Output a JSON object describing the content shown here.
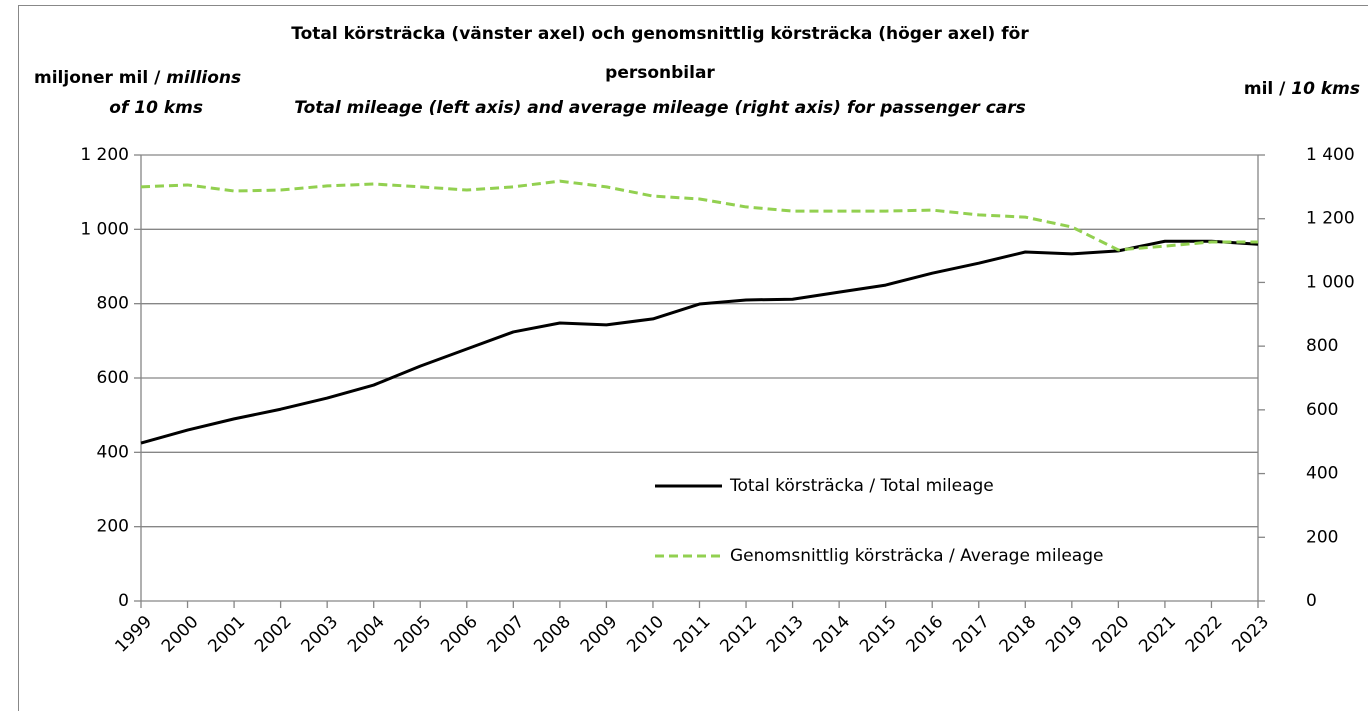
{
  "chart_data": {
    "type": "line",
    "title": [
      "Total körsträcka (vänster axel) och genomsnittlig körsträcka (höger axel) för",
      "personbilar"
    ],
    "subtitle": "Total mileage (left axis) and average mileage (right axis) for passenger cars",
    "ylabel": [
      "miljoner mil / ",
      "millions",
      "of 10 kms"
    ],
    "y2label": [
      "mil / ",
      "10 kms"
    ],
    "categories": [
      "1999",
      "2000",
      "2001",
      "2002",
      "2003",
      "2004",
      "2005",
      "2006",
      "2007",
      "2008",
      "2009",
      "2010",
      "2011",
      "2012",
      "2013",
      "2014",
      "2015",
      "2016",
      "2017",
      "2018",
      "2019",
      "2020",
      "2021",
      "2022",
      "2023"
    ],
    "series": [
      {
        "name": "Total körsträcka / Total mileage",
        "color": "#000000",
        "dash": false,
        "values": [
          425,
          460,
          490,
          516,
          546,
          581,
          632,
          678,
          724,
          748,
          743,
          759,
          799,
          810,
          812,
          831,
          850,
          882,
          909,
          939,
          934,
          942,
          968,
          968,
          960
        ]
      },
      {
        "name": "Genomsnittlig körsträcka / Average mileage",
        "color": "#92d050",
        "dash": true,
        "axis": "y2",
        "values": [
          1300,
          1306,
          1287,
          1290,
          1303,
          1309,
          1300,
          1290,
          1300,
          1318,
          1300,
          1271,
          1262,
          1237,
          1224,
          1224,
          1224,
          1227,
          1212,
          1205,
          1174,
          1102,
          1114,
          1127,
          1127
        ]
      }
    ],
    "ylim": [
      0,
      1200
    ],
    "yticks": [
      0,
      200,
      400,
      600,
      800,
      {
        "value": 1000,
        "label": "1 000"
      },
      {
        "value": 1200,
        "label": "1 200"
      }
    ],
    "y2lim": [
      0,
      1400
    ],
    "y2ticks": [
      0,
      200,
      400,
      600,
      800,
      {
        "value": 1000,
        "label": "1 000"
      },
      {
        "value": 1200,
        "label": "1 200"
      },
      {
        "value": 1400,
        "label": "1 400"
      }
    ],
    "grid": true
  }
}
